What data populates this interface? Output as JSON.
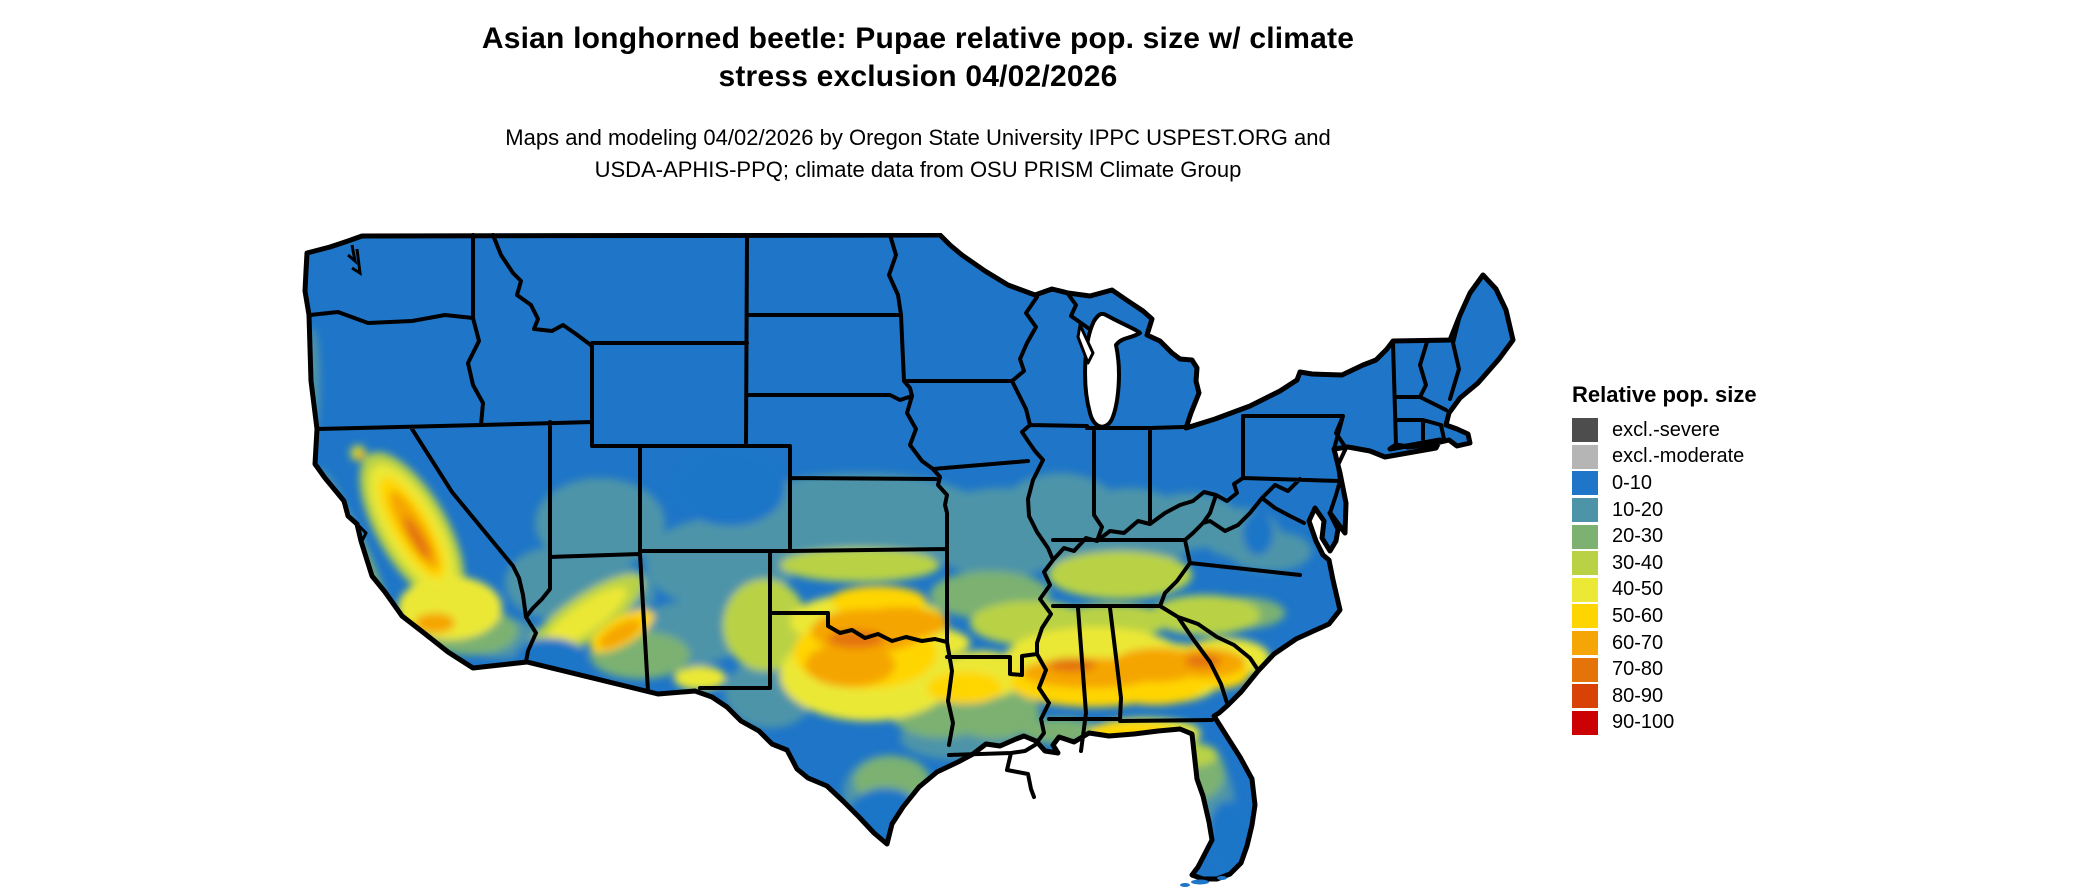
{
  "title": {
    "line1": "Asian longhorned beetle: Pupae relative pop. size w/ climate",
    "line2": "stress exclusion 04/02/2026"
  },
  "subtitle": {
    "line1": "Maps and modeling 04/02/2026 by Oregon State University IPPC USPEST.ORG and",
    "line2": "USDA-APHIS-PPQ; climate data from OSU PRISM Climate Group"
  },
  "legend": {
    "title": "Relative pop. size",
    "items": [
      {
        "key": "excl-severe",
        "label": "excl.-severe",
        "color": "#4D4D4D"
      },
      {
        "key": "excl-moderate",
        "label": "excl.-moderate",
        "color": "#B5B5B5"
      },
      {
        "key": "0-10",
        "label": "0-10",
        "color": "#1F76C8"
      },
      {
        "key": "10-20",
        "label": "10-20",
        "color": "#4E94A9"
      },
      {
        "key": "20-30",
        "label": "20-30",
        "color": "#7CB172"
      },
      {
        "key": "30-40",
        "label": "30-40",
        "color": "#B9D245"
      },
      {
        "key": "40-50",
        "label": "40-50",
        "color": "#EBE836"
      },
      {
        "key": "50-60",
        "label": "50-60",
        "color": "#FFD500"
      },
      {
        "key": "60-70",
        "label": "60-70",
        "color": "#F5A506"
      },
      {
        "key": "70-80",
        "label": "70-80",
        "color": "#E47309"
      },
      {
        "key": "80-90",
        "label": "80-90",
        "color": "#D94206"
      },
      {
        "key": "90-100",
        "label": "90-100",
        "color": "#CB0103"
      }
    ]
  },
  "map": {
    "area": "Contiguous United States",
    "type": "raster choropleth with state boundaries",
    "base_class": "0-10",
    "border_color": "#000000",
    "water_color": "#FFFFFF",
    "regional_summary": [
      {
        "region": "Pacific Northwest, northern Rockies, northern plains, upper Midwest, Northeast",
        "class": "0-10"
      },
      {
        "region": "Central band: Kansas, Missouri, southern Illinois/Indiana/Ohio, Kentucky, West Virginia, Virginia",
        "class": "10-20"
      },
      {
        "region": "Great Basin and Colorado Plateau mid-elevations, Pacific coastal fringe",
        "class": "10-20"
      },
      {
        "region": "Tennessee, southern Kansas, Carolinas piedmont, Arkansas uplands, eastern New Mexico",
        "class": "30-40"
      },
      {
        "region": "Oklahoma, central Texas, Deep South coastal plain, Florida panhandle, South Carolina",
        "class": "40-60"
      },
      {
        "region": "North-central Texas, southern Oklahoma, central Mississippi/Alabama/Georgia, California Central Valley, central Arizona band",
        "class": "60-80"
      },
      {
        "region": "South Texas, south Florida, low southwestern deserts, high Rockies",
        "class": "0-10"
      }
    ]
  }
}
